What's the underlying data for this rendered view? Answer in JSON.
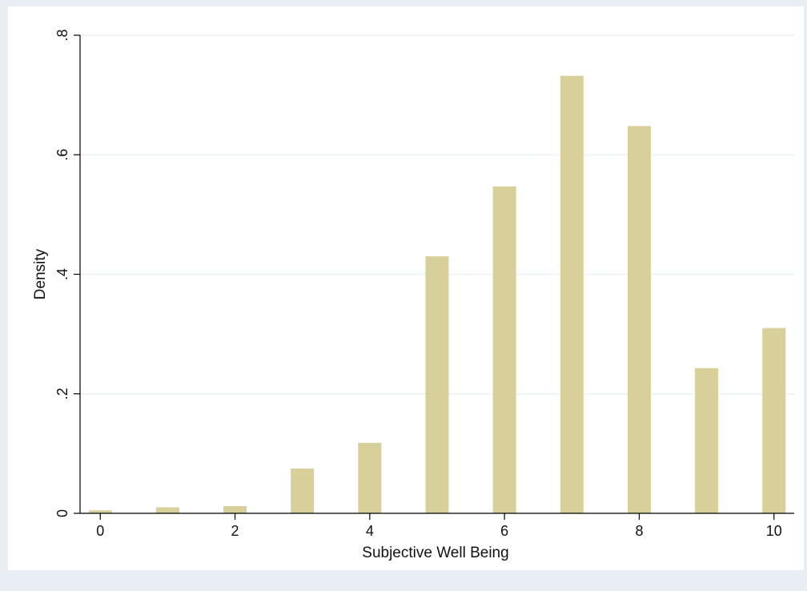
{
  "chart_data": {
    "type": "bar",
    "xlabel": "Subjective Well Being",
    "ylabel": "Density",
    "x": [
      0,
      1,
      2,
      3,
      4,
      5,
      6,
      7,
      8,
      9,
      10
    ],
    "values": [
      0.005,
      0.01,
      0.012,
      0.075,
      0.118,
      0.43,
      0.547,
      0.732,
      0.648,
      0.243,
      0.31
    ],
    "xlim": [
      -0.3,
      10.3
    ],
    "ylim": [
      0,
      0.8
    ],
    "xticks": [
      0,
      2,
      4,
      6,
      8,
      10
    ],
    "xtick_labels": [
      "0",
      "2",
      "4",
      "6",
      "8",
      "10"
    ],
    "yticks": [
      0,
      0.2,
      0.4,
      0.6,
      0.8
    ],
    "ytick_labels": [
      "0",
      ".2",
      ".4",
      ".6",
      ".8"
    ],
    "grid": true,
    "bar_color": "#d8d09a",
    "background_color": "#ffffff",
    "outer_background_color": "#e9eef2"
  }
}
